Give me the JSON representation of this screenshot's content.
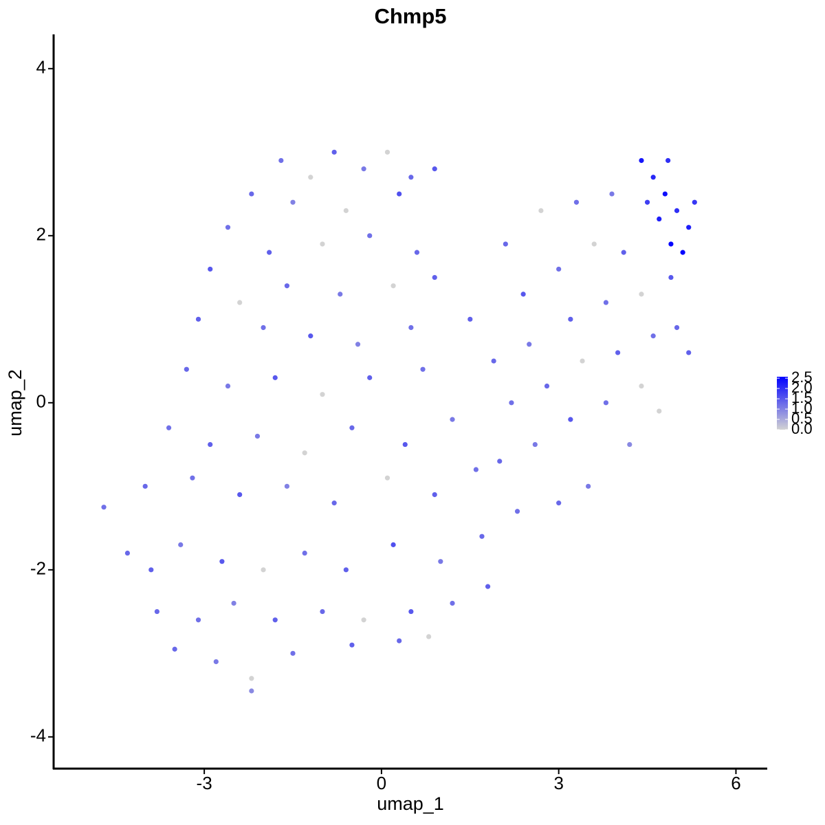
{
  "chart_data": {
    "type": "scatter",
    "title": "Chmp5",
    "x_label": "umap_1",
    "y_label": "umap_2",
    "xlim": [
      -5.55,
      6.53
    ],
    "ylim": [
      -4.38,
      4.41
    ],
    "xticks": [
      -3,
      0,
      3,
      6
    ],
    "yticks": [
      -4,
      -2,
      0,
      2,
      4
    ],
    "color_range": [
      "#d3d3d3",
      "#0000ff"
    ],
    "colorlim": [
      0,
      2.57
    ],
    "color_ticks": [
      {
        "value": 0,
        "label": "0.0"
      },
      0.5,
      {
        "value": 1,
        "label": "1.0"
      },
      1.5,
      {
        "value": 2,
        "label": "2.0"
      },
      2.5
    ],
    "x": [
      -1.7,
      -1.2,
      -0.8,
      -0.3,
      0.1,
      0.5,
      0.9,
      -2.2,
      -1.5,
      -0.6,
      0.3,
      -2.6,
      -1.9,
      -1.0,
      -0.2,
      0.6,
      -2.9,
      -2.4,
      -1.6,
      -0.7,
      0.2,
      0.9,
      -3.1,
      -2.0,
      -1.2,
      -0.4,
      0.5,
      -3.3,
      -2.6,
      -1.8,
      -1.0,
      -0.2,
      0.7,
      -3.6,
      -2.9,
      -2.1,
      -1.3,
      -0.5,
      0.4,
      1.2,
      -4.0,
      -3.2,
      -2.4,
      -1.6,
      -0.8,
      0.1,
      0.9,
      1.6,
      -4.7,
      -4.3,
      -3.9,
      -3.4,
      -2.7,
      -2.0,
      -1.3,
      -0.6,
      0.2,
      1.0,
      1.7,
      -3.8,
      -3.1,
      -2.5,
      -1.8,
      -1.0,
      -0.3,
      0.5,
      1.2,
      -3.5,
      -2.8,
      -2.2,
      -1.5,
      -0.5,
      0.3,
      0.8,
      -2.2,
      1.5,
      2.1,
      2.7,
      3.3,
      3.9,
      2.4,
      3.0,
      3.6,
      4.1,
      1.9,
      2.5,
      3.2,
      3.8,
      4.4,
      4.9,
      2.2,
      2.8,
      3.4,
      4.0,
      4.6,
      5.2,
      2.0,
      2.6,
      3.2,
      3.8,
      4.4,
      5.0,
      2.3,
      3.0,
      3.5,
      4.2,
      4.7,
      1.8,
      4.4,
      4.6,
      4.8,
      5.0,
      5.2,
      4.9,
      5.1,
      4.7,
      5.3,
      4.5,
      4.85
    ],
    "y": [
      2.9,
      2.7,
      3.0,
      2.8,
      3.0,
      2.7,
      2.8,
      2.5,
      2.4,
      2.3,
      2.5,
      2.1,
      1.8,
      1.9,
      2.0,
      1.8,
      1.6,
      1.2,
      1.4,
      1.3,
      1.4,
      1.5,
      1.0,
      0.9,
      0.8,
      0.7,
      0.9,
      0.4,
      0.2,
      0.3,
      0.1,
      0.3,
      0.4,
      -0.3,
      -0.5,
      -0.4,
      -0.6,
      -0.3,
      -0.5,
      -0.2,
      -1.0,
      -0.9,
      -1.1,
      -1.0,
      -1.2,
      -0.9,
      -1.1,
      -0.8,
      -1.25,
      -1.8,
      -2.0,
      -1.7,
      -1.9,
      -2.0,
      -1.8,
      -2.0,
      -1.7,
      -1.9,
      -1.6,
      -2.5,
      -2.6,
      -2.4,
      -2.6,
      -2.5,
      -2.6,
      -2.5,
      -2.4,
      -2.95,
      -3.1,
      -3.3,
      -3.0,
      -2.9,
      -2.85,
      -2.8,
      -3.45,
      1.0,
      1.9,
      2.3,
      2.4,
      2.5,
      1.3,
      1.6,
      1.9,
      1.8,
      0.5,
      0.7,
      1.0,
      1.2,
      1.3,
      1.5,
      0.0,
      0.2,
      0.5,
      0.6,
      0.8,
      0.6,
      -0.7,
      -0.5,
      -0.2,
      0.0,
      0.2,
      0.9,
      -1.3,
      -1.2,
      -1.0,
      -0.5,
      -0.1,
      -2.2,
      2.9,
      2.7,
      2.5,
      2.3,
      2.1,
      1.9,
      1.8,
      2.2,
      2.4,
      2.4,
      2.9
    ],
    "values": [
      1.2,
      0,
      1.4,
      1.1,
      0,
      1.3,
      1.5,
      1.3,
      1.0,
      0,
      1.6,
      1.2,
      1.4,
      0,
      1.2,
      1.3,
      1.5,
      0,
      1.3,
      1.1,
      0,
      1.4,
      1.4,
      1.2,
      1.5,
      1.0,
      1.2,
      1.3,
      1.1,
      1.5,
      0,
      1.4,
      1.2,
      1.2,
      1.4,
      1.1,
      0,
      1.3,
      1.5,
      1.1,
      1.3,
      1.2,
      1.5,
      1.0,
      1.3,
      0,
      1.4,
      1.2,
      1.2,
      1.3,
      1.4,
      1.1,
      1.5,
      0,
      1.2,
      1.4,
      1.6,
      1.1,
      1.3,
      1.3,
      1.2,
      1.0,
      1.4,
      1.3,
      0,
      1.5,
      1.2,
      1.3,
      1.1,
      0,
      1.2,
      1.4,
      1.3,
      0,
      0.9,
      1.4,
      1.3,
      0,
      1.2,
      1.1,
      1.5,
      1.2,
      0,
      1.4,
      1.3,
      1.1,
      1.4,
      1.2,
      0,
      1.5,
      1.2,
      1.3,
      0,
      1.4,
      1.2,
      1.4,
      1.3,
      1.1,
      1.5,
      1.2,
      0,
      1.3,
      1.2,
      1.3,
      1.1,
      0.9,
      0,
      1.4,
      2.3,
      2.1,
      2.4,
      2.0,
      2.2,
      2.5,
      2.5,
      2.2,
      1.9,
      1.8,
      2.0
    ]
  }
}
